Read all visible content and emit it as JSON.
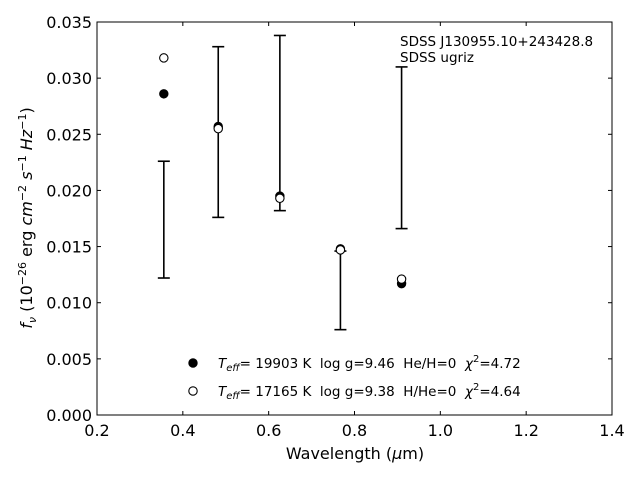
{
  "chart_data": {
    "type": "scatter",
    "xlabel": "Wavelength (μm)",
    "xlabel_parts": [
      "Wavelength (",
      "μ",
      "m)"
    ],
    "ylabel": "fν (10⁻²⁶ erg cm⁻² s⁻¹ Hz⁻¹)",
    "xlim": [
      0.2,
      1.4
    ],
    "ylim": [
      0.0,
      0.035
    ],
    "x_ticks": [
      "0.2",
      "0.4",
      "0.6",
      "0.8",
      "1.0",
      "1.2",
      "1.4"
    ],
    "y_ticks": [
      "0.000",
      "0.005",
      "0.010",
      "0.015",
      "0.020",
      "0.025",
      "0.030",
      "0.035"
    ],
    "tick_direction": "in",
    "grid": false,
    "legend_position": "bottom-center",
    "annotations": [
      "SDSS J130955.10+243428.8",
      "SDSS ugriz"
    ],
    "observed": {
      "x": [
        0.3557,
        0.4825,
        0.6261,
        0.7672,
        0.9097
      ],
      "y": [
        0.0174,
        0.0252,
        0.026,
        0.0111,
        0.0238
      ],
      "yerr": [
        0.0052,
        0.0076,
        0.0078,
        0.0035,
        0.0072
      ]
    },
    "series": [
      {
        "name": "Teff= 19903 K  log g=9.46  He/H=0  χ²=4.72",
        "marker": "filled-circle",
        "x": [
          0.3557,
          0.4825,
          0.6261,
          0.7672,
          0.9097
        ],
        "y": [
          0.0286,
          0.0257,
          0.0195,
          0.0148,
          0.0117
        ]
      },
      {
        "name": "Teff= 17165 K  log g=9.38  H/He=0  χ²=4.64",
        "marker": "open-circle",
        "x": [
          0.3557,
          0.4825,
          0.6261,
          0.7672,
          0.9097
        ],
        "y": [
          0.0318,
          0.0255,
          0.0193,
          0.0147,
          0.0121
        ]
      }
    ],
    "legend": [
      {
        "teff": "19903 K",
        "rest": "  log g=9.46  He/H=0  ",
        "chi2": "=4.72"
      },
      {
        "teff": "17165 K",
        "rest": "  log g=9.38  H/He=0  ",
        "chi2": "=4.64"
      }
    ]
  }
}
